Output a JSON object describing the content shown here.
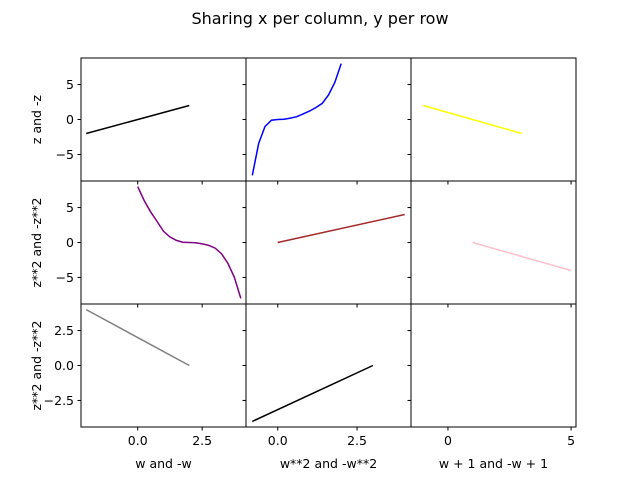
{
  "figure": {
    "suptitle": "Sharing x per column, y per row"
  },
  "chart_data": [
    {
      "type": "line",
      "row": 0,
      "col": 0,
      "color": "#000000",
      "x": [
        -2,
        2
      ],
      "y": [
        -2,
        2
      ],
      "xlim": [
        -2.2,
        4.2
      ],
      "ylim": [
        -8.8,
        8.8
      ],
      "ylabel": "z and -z",
      "yticks": [
        5,
        0,
        -5
      ],
      "ytick_labels": [
        "5",
        "0",
        "−5"
      ]
    },
    {
      "type": "line",
      "row": 0,
      "col": 1,
      "color": "#0000ff",
      "x": [
        -0.8,
        -0.6,
        -0.4,
        -0.2,
        0,
        0.2,
        0.4,
        0.6,
        0.8,
        1,
        1.2,
        1.4,
        1.6,
        1.8,
        2
      ],
      "y": [
        -8,
        -3.4,
        -1,
        -0.1,
        0,
        0.05,
        0.2,
        0.4,
        0.8,
        1.2,
        1.7,
        2.3,
        3.5,
        5.3,
        8
      ],
      "xlim": [
        -1,
        4.2
      ],
      "ylim": [
        -8.8,
        8.8
      ]
    },
    {
      "type": "line",
      "row": 0,
      "col": 2,
      "color": "#ffff00",
      "x": [
        -1,
        3
      ],
      "y": [
        2,
        -2
      ],
      "xlim": [
        -1.5,
        5.2
      ],
      "ylim": [
        -8.8,
        8.8
      ]
    },
    {
      "type": "line",
      "row": 1,
      "col": 0,
      "color": "#800080",
      "x": [
        0,
        0.25,
        0.5,
        0.75,
        1,
        1.25,
        1.5,
        1.75,
        2,
        2.25,
        2.5,
        2.75,
        3,
        3.25,
        3.5,
        3.75,
        4
      ],
      "y": [
        8,
        6,
        4.4,
        3,
        1.6,
        0.8,
        0.3,
        0.05,
        0,
        -0.05,
        -0.2,
        -0.4,
        -0.8,
        -1.6,
        -3,
        -5,
        -8
      ],
      "xlim": [
        -2.2,
        4.2
      ],
      "ylim": [
        -8.8,
        8.8
      ],
      "ylabel": "z**2 and -z**2",
      "yticks": [
        5,
        0,
        -5
      ],
      "ytick_labels": [
        "5",
        "0",
        "−5"
      ]
    },
    {
      "type": "line",
      "row": 1,
      "col": 1,
      "color": "#a52a2a",
      "x": [
        0,
        4
      ],
      "y": [
        0,
        4
      ],
      "xlim": [
        -1,
        4.2
      ],
      "ylim": [
        -8.8,
        8.8
      ]
    },
    {
      "type": "line",
      "row": 1,
      "col": 2,
      "color": "#ffc0cb",
      "x": [
        1,
        5
      ],
      "y": [
        0,
        -4
      ],
      "xlim": [
        -1.5,
        5.2
      ],
      "ylim": [
        -8.8,
        8.8
      ]
    },
    {
      "type": "line",
      "row": 2,
      "col": 0,
      "color": "#808080",
      "x": [
        -2,
        2
      ],
      "y": [
        4,
        0
      ],
      "xlim": [
        -2.2,
        4.2
      ],
      "ylim": [
        -4.4,
        4.4
      ],
      "xlabel": "w and -w",
      "xticks": [
        0,
        2.5
      ],
      "xtick_labels": [
        "0.0",
        "2.5"
      ],
      "ylabel": "z**2 and -z**2",
      "yticks": [
        2.5,
        0,
        -2.5
      ],
      "ytick_labels": [
        "2.5",
        "0.0",
        "−2.5"
      ]
    },
    {
      "type": "line",
      "row": 2,
      "col": 1,
      "color": "#000000",
      "x": [
        -0.8,
        3
      ],
      "y": [
        -4,
        0
      ],
      "xlim": [
        -1,
        4.2
      ],
      "ylim": [
        -4.4,
        4.4
      ],
      "xlabel": "w**2 and -w**2",
      "xticks": [
        0,
        2.5
      ],
      "xtick_labels": [
        "0.0",
        "2.5"
      ]
    },
    {
      "type": "line",
      "row": 2,
      "col": 2,
      "color": null,
      "x": [],
      "y": [],
      "xlim": [
        -1.5,
        5.2
      ],
      "ylim": [
        -4.4,
        4.4
      ],
      "xlabel": "w + 1 and -w + 1",
      "xticks": [
        0,
        5
      ],
      "xtick_labels": [
        "0",
        "5"
      ]
    }
  ]
}
